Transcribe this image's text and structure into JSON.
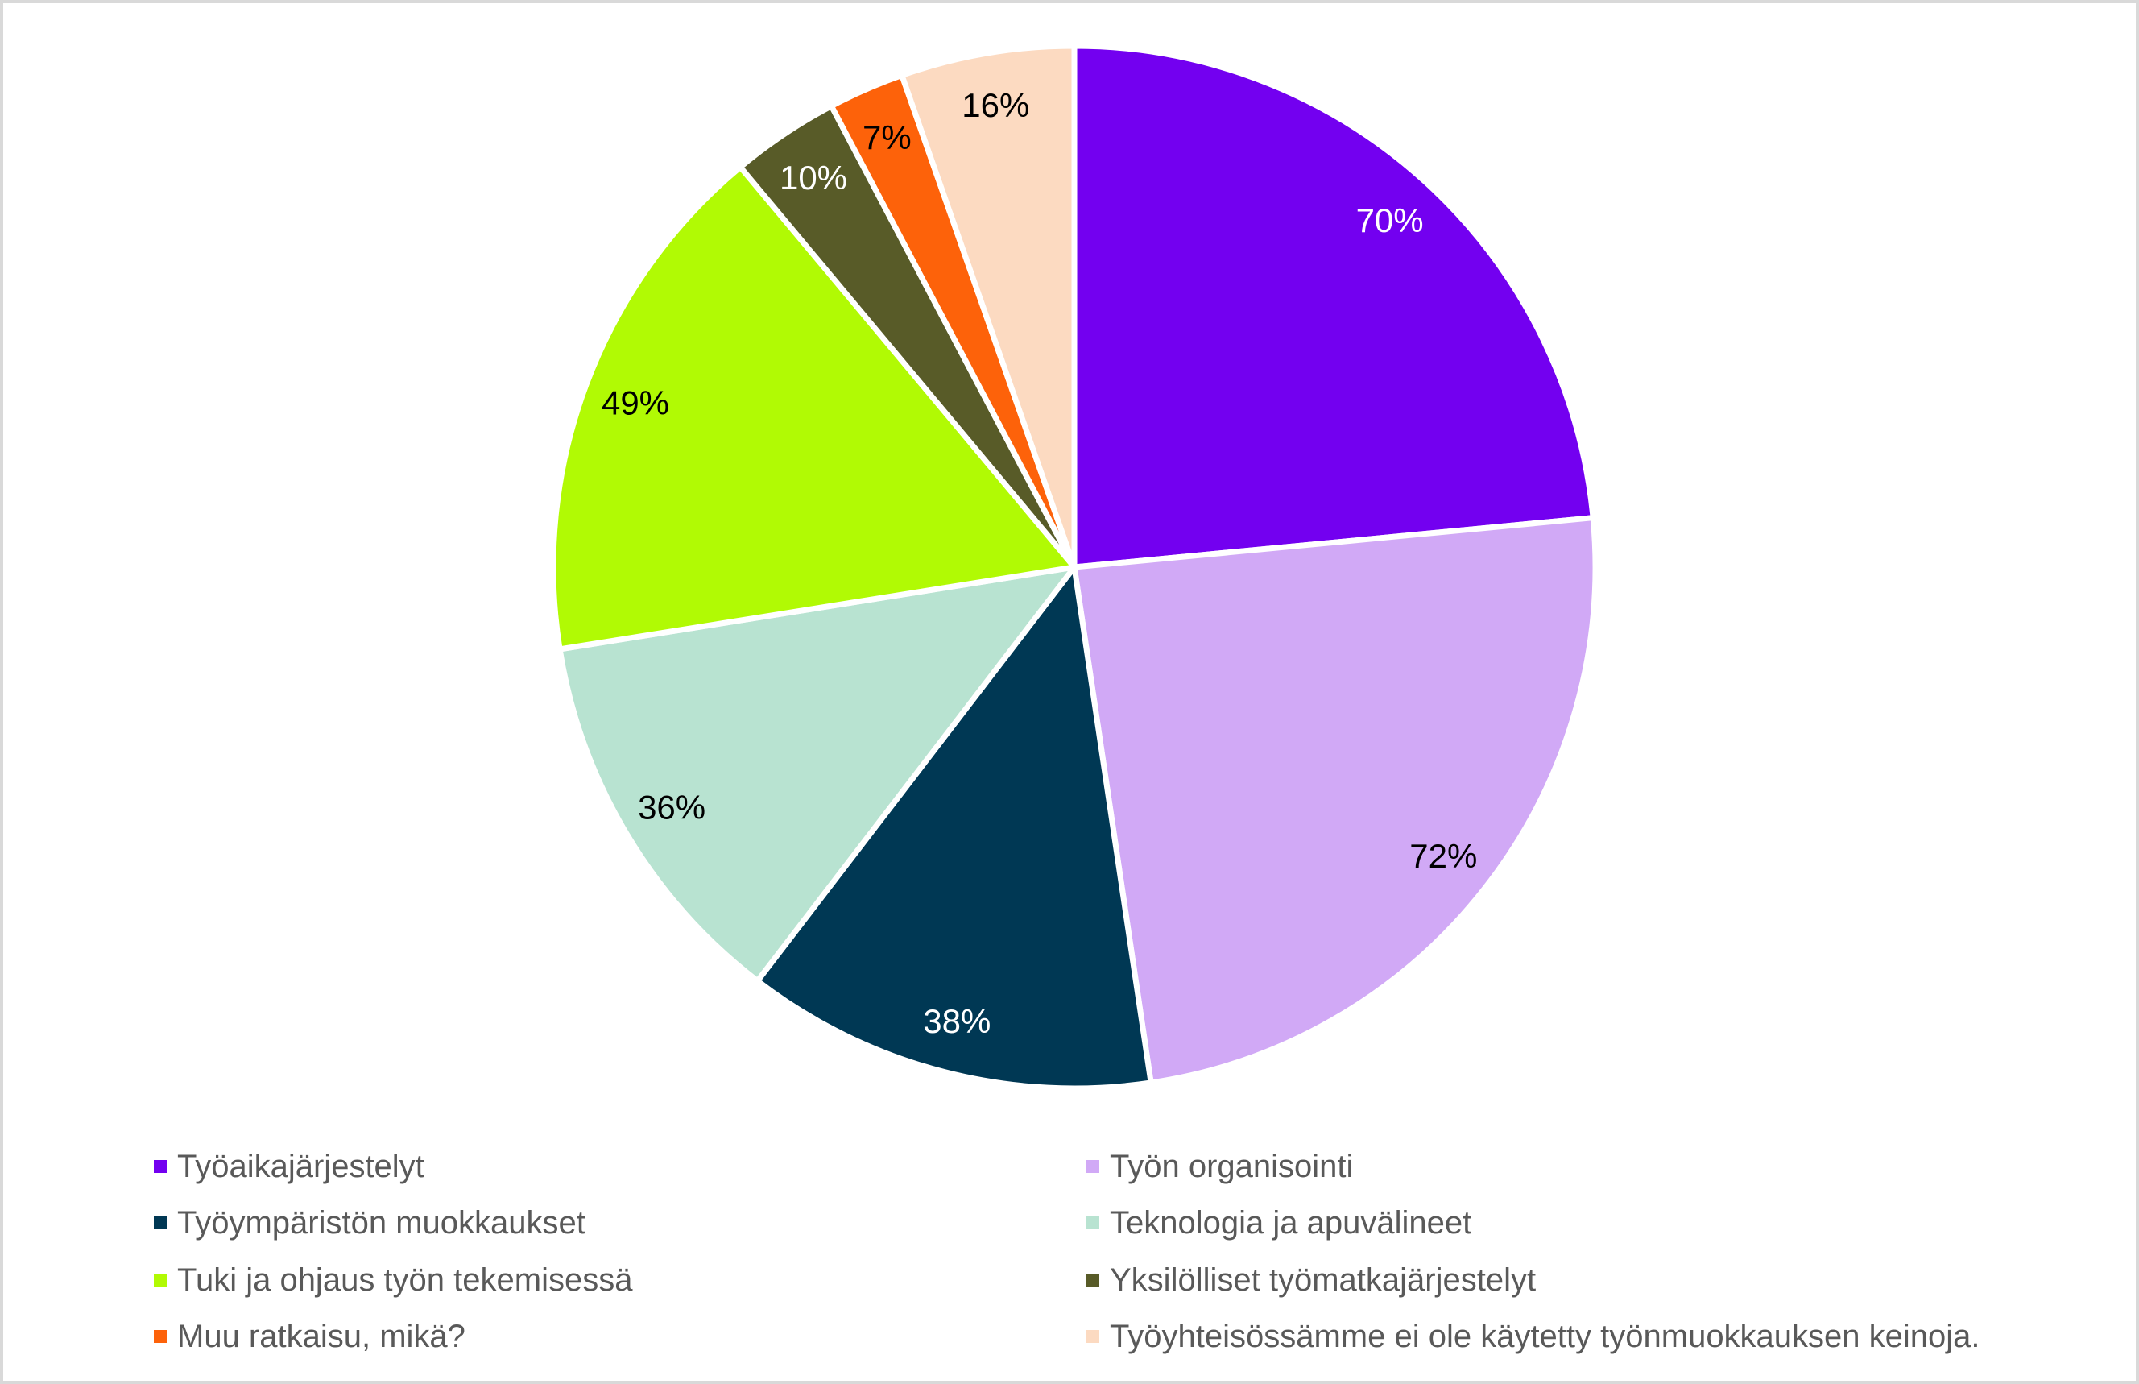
{
  "page": {
    "background_color": "#FFFFFF",
    "frame_border_color": "#D9D9D9"
  },
  "chart_data": {
    "type": "pie",
    "title": "",
    "start_angle_deg": 0,
    "direction": "clockwise",
    "value_suffix": "%",
    "values_sum": 298,
    "legend_position": "bottom",
    "legend_columns": 2,
    "legend_text_color": "#595959",
    "slice_separator_color": "#FFFFFF",
    "slices": [
      {
        "label": "Työaikajärjestelyt",
        "value": 70,
        "color": "#7300F0",
        "label_color": "#FFFFFF"
      },
      {
        "label": "Työn organisointi",
        "value": 72,
        "color": "#D1A9F6",
        "label_color": "#000000"
      },
      {
        "label": "Työympäristön muokkaukset",
        "value": 38,
        "color": "#003854",
        "label_color": "#FFFFFF"
      },
      {
        "label": "Teknologia ja apuvälineet",
        "value": 36,
        "color": "#B8E3D1",
        "label_color": "#000000"
      },
      {
        "label": "Tuki ja ohjaus työn tekemisessä",
        "value": 49,
        "color": "#B1FA04",
        "label_color": "#000000"
      },
      {
        "label": "Yksilölliset työmatkajärjestelyt",
        "value": 10,
        "color": "#585B28",
        "label_color": "#FFFFFF"
      },
      {
        "label": "Muu ratkaisu, mikä?",
        "value": 7,
        "color": "#FD620A",
        "label_color": "#000000"
      },
      {
        "label": "Työyhteisössämme ei ole käytetty työnmuokkauksen keinoja.",
        "value": 16,
        "color": "#FCDAC1",
        "label_color": "#000000"
      }
    ]
  }
}
